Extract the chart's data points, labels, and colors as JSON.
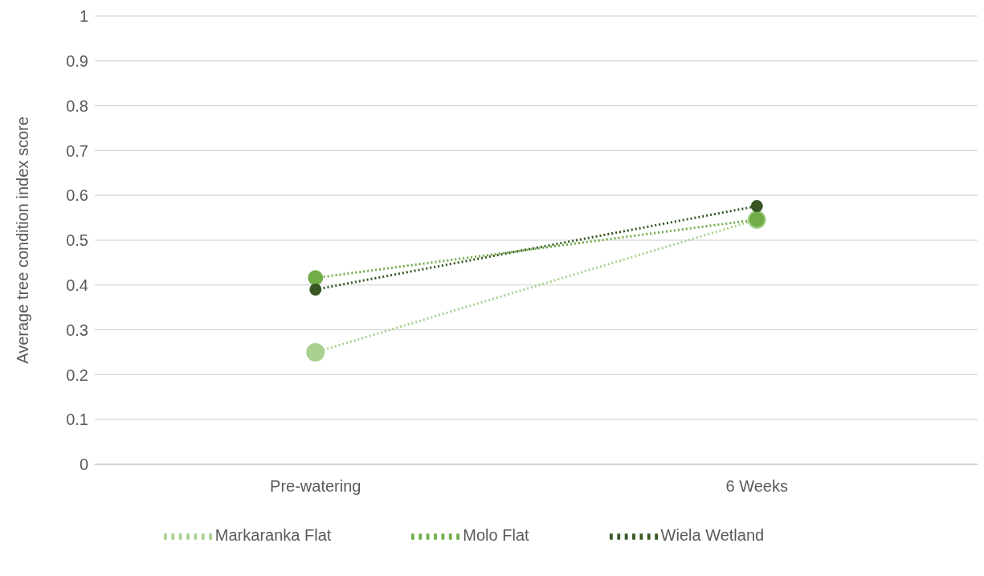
{
  "chart_data": {
    "type": "line",
    "ylabel": "Average tree condition index score",
    "categories": [
      "Pre-watering",
      "6 Weeks"
    ],
    "series": [
      {
        "name": "Markaranka Flat",
        "color": "#a9d18e",
        "values": [
          0.25,
          0.546
        ]
      },
      {
        "name": "Molo Flat",
        "color": "#70ad47",
        "values": [
          0.416,
          0.546
        ]
      },
      {
        "name": "Wiela Wetland",
        "color": "#375623",
        "values": [
          0.39,
          0.576
        ]
      }
    ],
    "ylim": [
      0,
      1
    ],
    "yticks": [
      0,
      0.1,
      0.2,
      0.3,
      0.4,
      0.5,
      0.6,
      0.7,
      0.8,
      0.9,
      1
    ],
    "grid": "y",
    "legend": "bottom",
    "marker": "circle",
    "line_style": "dotted"
  }
}
